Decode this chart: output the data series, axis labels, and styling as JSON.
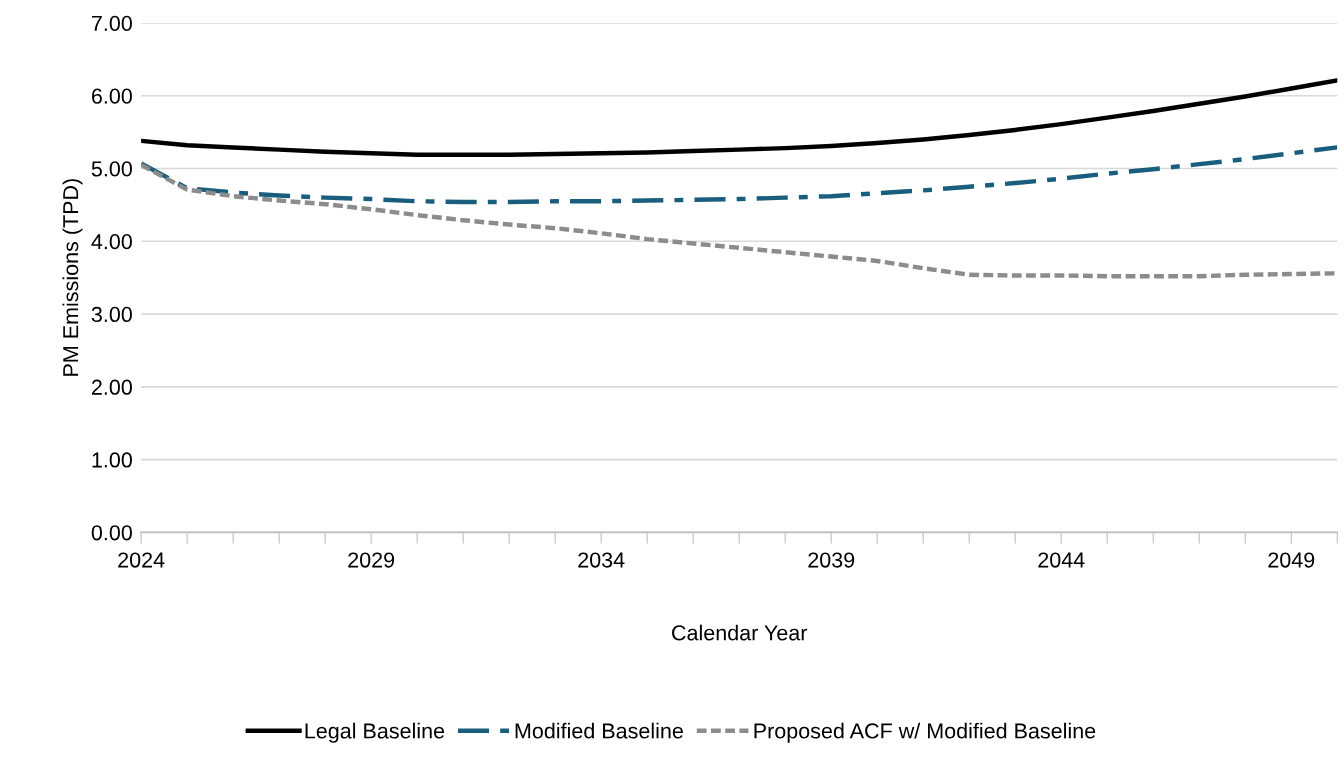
{
  "chart_data": {
    "type": "line",
    "xlabel": "Calendar Year",
    "ylabel": "PM Emissions (TPD)",
    "x": [
      2024,
      2025,
      2026,
      2027,
      2028,
      2029,
      2030,
      2031,
      2032,
      2033,
      2034,
      2035,
      2036,
      2037,
      2038,
      2039,
      2040,
      2041,
      2042,
      2043,
      2044,
      2045,
      2046,
      2047,
      2048,
      2049,
      2050
    ],
    "series": [
      {
        "name": "Legal Baseline",
        "color": "#000000",
        "line_style": "solid",
        "values": [
          5.38,
          5.32,
          5.29,
          5.26,
          5.23,
          5.21,
          5.19,
          5.19,
          5.19,
          5.2,
          5.21,
          5.22,
          5.24,
          5.26,
          5.28,
          5.31,
          5.35,
          5.4,
          5.46,
          5.53,
          5.61,
          5.7,
          5.79,
          5.89,
          5.99,
          6.1,
          6.21
        ]
      },
      {
        "name": "Modified Baseline",
        "color": "#1a5e7e",
        "line_style": "dashed",
        "values": [
          5.07,
          4.73,
          4.67,
          4.63,
          4.6,
          4.58,
          4.55,
          4.54,
          4.54,
          4.55,
          4.55,
          4.56,
          4.57,
          4.58,
          4.6,
          4.62,
          4.66,
          4.7,
          4.75,
          4.8,
          4.86,
          4.93,
          4.99,
          5.06,
          5.13,
          5.21,
          5.29
        ]
      },
      {
        "name": "Proposed ACF w/ Modified Baseline",
        "color": "#8c8c8c",
        "line_style": "dotted",
        "values": [
          5.05,
          4.71,
          4.62,
          4.56,
          4.51,
          4.44,
          4.36,
          4.29,
          4.23,
          4.18,
          4.11,
          4.03,
          3.97,
          3.91,
          3.85,
          3.79,
          3.73,
          3.63,
          3.54,
          3.53,
          3.53,
          3.52,
          3.52,
          3.52,
          3.54,
          3.55,
          3.56
        ]
      }
    ],
    "xlim": [
      2024,
      2050
    ],
    "xticks": [
      2024,
      {
        "value": 2025,
        "label": null
      },
      {
        "value": 2026,
        "label": null
      },
      {
        "value": 2027,
        "label": null
      },
      {
        "value": 2028,
        "label": null
      },
      2029,
      {
        "value": 2030,
        "label": null
      },
      {
        "value": 2031,
        "label": null
      },
      {
        "value": 2032,
        "label": null
      },
      {
        "value": 2033,
        "label": null
      },
      2034,
      {
        "value": 2035,
        "label": null
      },
      {
        "value": 2036,
        "label": null
      },
      {
        "value": 2037,
        "label": null
      },
      {
        "value": 2038,
        "label": null
      },
      2039,
      {
        "value": 2040,
        "label": null
      },
      {
        "value": 2041,
        "label": null
      },
      {
        "value": 2042,
        "label": null
      },
      {
        "value": 2043,
        "label": null
      },
      2044,
      {
        "value": 2045,
        "label": null
      },
      {
        "value": 2046,
        "label": null
      },
      {
        "value": 2047,
        "label": null
      },
      {
        "value": 2048,
        "label": null
      },
      2049,
      {
        "value": 2050,
        "label": null
      }
    ],
    "ylim": [
      0,
      7
    ],
    "yticks": [
      {
        "value": 0,
        "label": "0.00"
      },
      {
        "value": 1,
        "label": "1.00"
      },
      {
        "value": 2,
        "label": "2.00"
      },
      {
        "value": 3,
        "label": "3.00"
      },
      {
        "value": 4,
        "label": "4.00"
      },
      {
        "value": 5,
        "label": "5.00"
      },
      {
        "value": 6,
        "label": "6.00"
      },
      {
        "value": 7,
        "label": "7.00"
      }
    ],
    "grid": "y",
    "legend": "bottom",
    "marker": "none"
  }
}
